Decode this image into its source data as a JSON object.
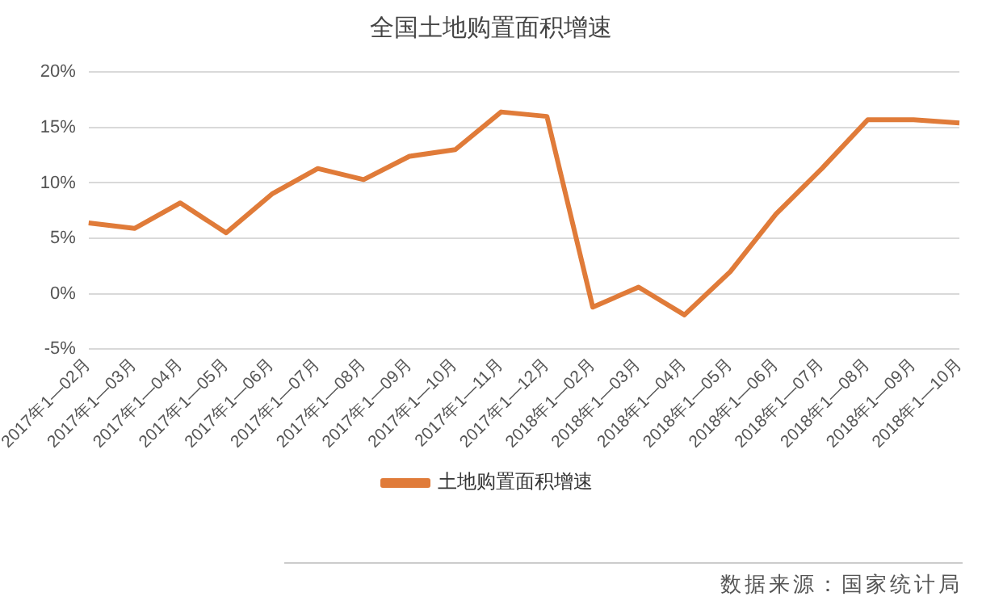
{
  "chart_data": {
    "type": "line",
    "title": "全国土地购置面积增速",
    "categories": [
      "2017年1—02月",
      "2017年1—03月",
      "2017年1—04月",
      "2017年1—05月",
      "2017年1—06月",
      "2017年1—07月",
      "2017年1—08月",
      "2017年1—09月",
      "2017年1—10月",
      "2017年1—11月",
      "2017年1—12月",
      "2018年1—02月",
      "2018年1—03月",
      "2018年1—04月",
      "2018年1—05月",
      "2018年1—06月",
      "2018年1—07月",
      "2018年1—08月",
      "2018年1—09月",
      "2018年1—10月"
    ],
    "series": [
      {
        "name": "土地购置面积增速",
        "color": "#e07b39",
        "values": [
          6.4,
          5.9,
          8.2,
          5.5,
          9.0,
          11.3,
          10.3,
          12.4,
          13.0,
          16.4,
          16.0,
          -1.2,
          0.6,
          -1.9,
          2.0,
          7.2,
          11.3,
          15.7,
          15.7,
          15.4
        ]
      }
    ],
    "ylim": [
      -5,
      20
    ],
    "yticks": [
      {
        "value": -5,
        "label": "-5%"
      },
      {
        "value": 0,
        "label": "0%"
      },
      {
        "value": 5,
        "label": "5%"
      },
      {
        "value": 10,
        "label": "10%"
      },
      {
        "value": 15,
        "label": "15%"
      },
      {
        "value": 20,
        "label": "20%"
      }
    ],
    "grid": "y",
    "legend": "bottom",
    "marker": "none",
    "line_style": "solid",
    "annotations": [
      "数据来源：国家统计局"
    ]
  }
}
